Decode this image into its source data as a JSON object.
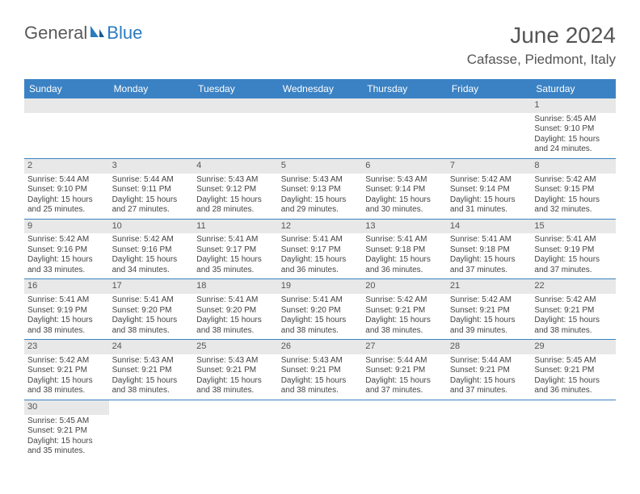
{
  "brand": {
    "part1": "General",
    "part2": "Blue"
  },
  "title": "June 2024",
  "location": "Cafasse, Piedmont, Italy",
  "colors": {
    "header_bg": "#3b82c4",
    "num_bg": "#e8e8e8",
    "rule": "#3b82c4",
    "text": "#444"
  },
  "day_names": [
    "Sunday",
    "Monday",
    "Tuesday",
    "Wednesday",
    "Thursday",
    "Friday",
    "Saturday"
  ],
  "weeks": [
    [
      null,
      null,
      null,
      null,
      null,
      null,
      {
        "n": "1",
        "sr": "Sunrise: 5:45 AM",
        "ss": "Sunset: 9:10 PM",
        "d1": "Daylight: 15 hours",
        "d2": "and 24 minutes."
      }
    ],
    [
      {
        "n": "2",
        "sr": "Sunrise: 5:44 AM",
        "ss": "Sunset: 9:10 PM",
        "d1": "Daylight: 15 hours",
        "d2": "and 25 minutes."
      },
      {
        "n": "3",
        "sr": "Sunrise: 5:44 AM",
        "ss": "Sunset: 9:11 PM",
        "d1": "Daylight: 15 hours",
        "d2": "and 27 minutes."
      },
      {
        "n": "4",
        "sr": "Sunrise: 5:43 AM",
        "ss": "Sunset: 9:12 PM",
        "d1": "Daylight: 15 hours",
        "d2": "and 28 minutes."
      },
      {
        "n": "5",
        "sr": "Sunrise: 5:43 AM",
        "ss": "Sunset: 9:13 PM",
        "d1": "Daylight: 15 hours",
        "d2": "and 29 minutes."
      },
      {
        "n": "6",
        "sr": "Sunrise: 5:43 AM",
        "ss": "Sunset: 9:14 PM",
        "d1": "Daylight: 15 hours",
        "d2": "and 30 minutes."
      },
      {
        "n": "7",
        "sr": "Sunrise: 5:42 AM",
        "ss": "Sunset: 9:14 PM",
        "d1": "Daylight: 15 hours",
        "d2": "and 31 minutes."
      },
      {
        "n": "8",
        "sr": "Sunrise: 5:42 AM",
        "ss": "Sunset: 9:15 PM",
        "d1": "Daylight: 15 hours",
        "d2": "and 32 minutes."
      }
    ],
    [
      {
        "n": "9",
        "sr": "Sunrise: 5:42 AM",
        "ss": "Sunset: 9:16 PM",
        "d1": "Daylight: 15 hours",
        "d2": "and 33 minutes."
      },
      {
        "n": "10",
        "sr": "Sunrise: 5:42 AM",
        "ss": "Sunset: 9:16 PM",
        "d1": "Daylight: 15 hours",
        "d2": "and 34 minutes."
      },
      {
        "n": "11",
        "sr": "Sunrise: 5:41 AM",
        "ss": "Sunset: 9:17 PM",
        "d1": "Daylight: 15 hours",
        "d2": "and 35 minutes."
      },
      {
        "n": "12",
        "sr": "Sunrise: 5:41 AM",
        "ss": "Sunset: 9:17 PM",
        "d1": "Daylight: 15 hours",
        "d2": "and 36 minutes."
      },
      {
        "n": "13",
        "sr": "Sunrise: 5:41 AM",
        "ss": "Sunset: 9:18 PM",
        "d1": "Daylight: 15 hours",
        "d2": "and 36 minutes."
      },
      {
        "n": "14",
        "sr": "Sunrise: 5:41 AM",
        "ss": "Sunset: 9:18 PM",
        "d1": "Daylight: 15 hours",
        "d2": "and 37 minutes."
      },
      {
        "n": "15",
        "sr": "Sunrise: 5:41 AM",
        "ss": "Sunset: 9:19 PM",
        "d1": "Daylight: 15 hours",
        "d2": "and 37 minutes."
      }
    ],
    [
      {
        "n": "16",
        "sr": "Sunrise: 5:41 AM",
        "ss": "Sunset: 9:19 PM",
        "d1": "Daylight: 15 hours",
        "d2": "and 38 minutes."
      },
      {
        "n": "17",
        "sr": "Sunrise: 5:41 AM",
        "ss": "Sunset: 9:20 PM",
        "d1": "Daylight: 15 hours",
        "d2": "and 38 minutes."
      },
      {
        "n": "18",
        "sr": "Sunrise: 5:41 AM",
        "ss": "Sunset: 9:20 PM",
        "d1": "Daylight: 15 hours",
        "d2": "and 38 minutes."
      },
      {
        "n": "19",
        "sr": "Sunrise: 5:41 AM",
        "ss": "Sunset: 9:20 PM",
        "d1": "Daylight: 15 hours",
        "d2": "and 38 minutes."
      },
      {
        "n": "20",
        "sr": "Sunrise: 5:42 AM",
        "ss": "Sunset: 9:21 PM",
        "d1": "Daylight: 15 hours",
        "d2": "and 38 minutes."
      },
      {
        "n": "21",
        "sr": "Sunrise: 5:42 AM",
        "ss": "Sunset: 9:21 PM",
        "d1": "Daylight: 15 hours",
        "d2": "and 39 minutes."
      },
      {
        "n": "22",
        "sr": "Sunrise: 5:42 AM",
        "ss": "Sunset: 9:21 PM",
        "d1": "Daylight: 15 hours",
        "d2": "and 38 minutes."
      }
    ],
    [
      {
        "n": "23",
        "sr": "Sunrise: 5:42 AM",
        "ss": "Sunset: 9:21 PM",
        "d1": "Daylight: 15 hours",
        "d2": "and 38 minutes."
      },
      {
        "n": "24",
        "sr": "Sunrise: 5:43 AM",
        "ss": "Sunset: 9:21 PM",
        "d1": "Daylight: 15 hours",
        "d2": "and 38 minutes."
      },
      {
        "n": "25",
        "sr": "Sunrise: 5:43 AM",
        "ss": "Sunset: 9:21 PM",
        "d1": "Daylight: 15 hours",
        "d2": "and 38 minutes."
      },
      {
        "n": "26",
        "sr": "Sunrise: 5:43 AM",
        "ss": "Sunset: 9:21 PM",
        "d1": "Daylight: 15 hours",
        "d2": "and 38 minutes."
      },
      {
        "n": "27",
        "sr": "Sunrise: 5:44 AM",
        "ss": "Sunset: 9:21 PM",
        "d1": "Daylight: 15 hours",
        "d2": "and 37 minutes."
      },
      {
        "n": "28",
        "sr": "Sunrise: 5:44 AM",
        "ss": "Sunset: 9:21 PM",
        "d1": "Daylight: 15 hours",
        "d2": "and 37 minutes."
      },
      {
        "n": "29",
        "sr": "Sunrise: 5:45 AM",
        "ss": "Sunset: 9:21 PM",
        "d1": "Daylight: 15 hours",
        "d2": "and 36 minutes."
      }
    ],
    [
      {
        "n": "30",
        "sr": "Sunrise: 5:45 AM",
        "ss": "Sunset: 9:21 PM",
        "d1": "Daylight: 15 hours",
        "d2": "and 35 minutes."
      },
      null,
      null,
      null,
      null,
      null,
      null
    ]
  ]
}
